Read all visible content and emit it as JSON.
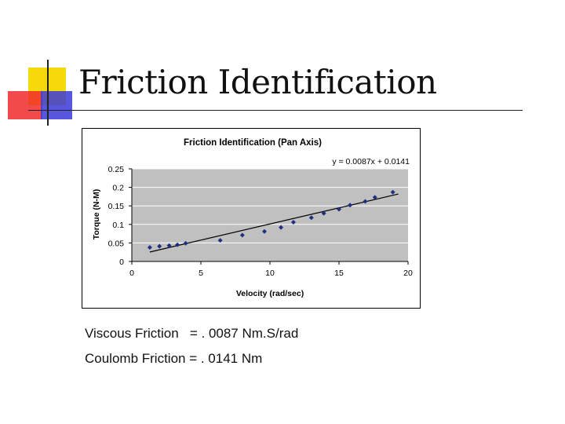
{
  "slide": {
    "title": "Friction Identification",
    "viscous_text": "Viscous Friction   = . 0087 Nm.S/rad",
    "coulomb_text": "Coulomb Friction = . 0141 Nm"
  },
  "colors": {
    "plot_bg": "#c0c0c0",
    "grid": "#ffffff",
    "marker": "#1f2f80",
    "trendline": "#000000"
  },
  "chart_data": {
    "type": "scatter",
    "title": "Friction Identification (Pan Axis)",
    "xlabel": "Velocity (rad/sec)",
    "ylabel": "Torque (N-M)",
    "xlim": [
      0,
      20
    ],
    "ylim": [
      0,
      0.25
    ],
    "xticks": [
      0,
      5,
      10,
      15,
      20
    ],
    "yticks": [
      0,
      0.05,
      0.1,
      0.15,
      0.2,
      0.25
    ],
    "xtick_labels": [
      "0",
      "5",
      "10",
      "15",
      "20"
    ],
    "ytick_labels": [
      "0",
      "0.05",
      "0.1",
      "0.15",
      "0.2",
      "0.25"
    ],
    "grid": true,
    "trendline": {
      "equation": "y = 0.0087x + 0.0141",
      "slope": 0.0087,
      "intercept": 0.0141,
      "x_range": [
        1.3,
        19.3
      ]
    },
    "points": [
      {
        "x": 1.3,
        "y": 0.038
      },
      {
        "x": 2.0,
        "y": 0.041
      },
      {
        "x": 2.7,
        "y": 0.043
      },
      {
        "x": 3.3,
        "y": 0.045
      },
      {
        "x": 3.9,
        "y": 0.049
      },
      {
        "x": 6.4,
        "y": 0.057
      },
      {
        "x": 8.0,
        "y": 0.071
      },
      {
        "x": 9.6,
        "y": 0.081
      },
      {
        "x": 10.8,
        "y": 0.092
      },
      {
        "x": 11.7,
        "y": 0.106
      },
      {
        "x": 13.0,
        "y": 0.118
      },
      {
        "x": 13.9,
        "y": 0.13
      },
      {
        "x": 15.0,
        "y": 0.141
      },
      {
        "x": 15.8,
        "y": 0.152
      },
      {
        "x": 16.9,
        "y": 0.162
      },
      {
        "x": 17.6,
        "y": 0.173
      },
      {
        "x": 18.9,
        "y": 0.187
      }
    ]
  }
}
